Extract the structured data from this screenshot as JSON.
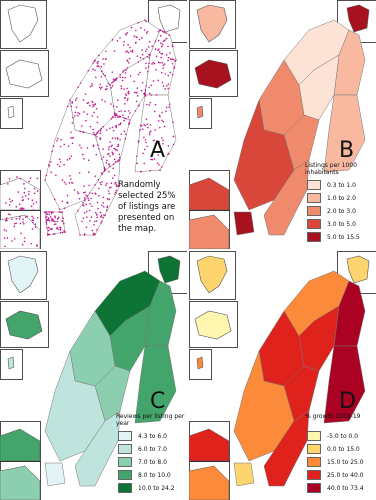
{
  "panels": [
    {
      "letter": "A",
      "annotation": "Randomly selected 25% of listings are presented on the map.",
      "dot_color": "#c2188f"
    },
    {
      "letter": "B",
      "legend": {
        "title": "Listings per 1000 inhabitants",
        "items": [
          {
            "label": "0.3 to 1.0",
            "color": "#fde3d6"
          },
          {
            "label": "1.0 to 2.0",
            "color": "#f8b9a0"
          },
          {
            "label": "2.0 to 3.0",
            "color": "#ef8a6c"
          },
          {
            "label": "3.0 to 5.0",
            "color": "#d9473a"
          },
          {
            "label": "5.0 to 15.5",
            "color": "#a8121e"
          }
        ]
      }
    },
    {
      "letter": "C",
      "legend": {
        "title": "Reviews per listing per year",
        "items": [
          {
            "label": "4.3 to 6.0",
            "color": "#e3f4f6"
          },
          {
            "label": "6.0 to 7.0",
            "color": "#bfe4de"
          },
          {
            "label": "7.0 to 8.0",
            "color": "#8bcfb0"
          },
          {
            "label": "8.0 to 10.0",
            "color": "#43a56b"
          },
          {
            "label": "10.0 to 24.2",
            "color": "#0d7436"
          }
        ]
      }
    },
    {
      "letter": "D",
      "legend": {
        "title": "% growth 2018-19",
        "items": [
          {
            "label": "-5.0 to 0.0",
            "color": "#fff7b0"
          },
          {
            "label": "0.0 to 15.0",
            "color": "#fdd46e"
          },
          {
            "label": "15.0 to 25.0",
            "color": "#fb8a3a"
          },
          {
            "label": "25.0 to 40.0",
            "color": "#e0221c"
          },
          {
            "label": "40.0 to 73.4",
            "color": "#ab0224"
          }
        ]
      }
    }
  ]
}
